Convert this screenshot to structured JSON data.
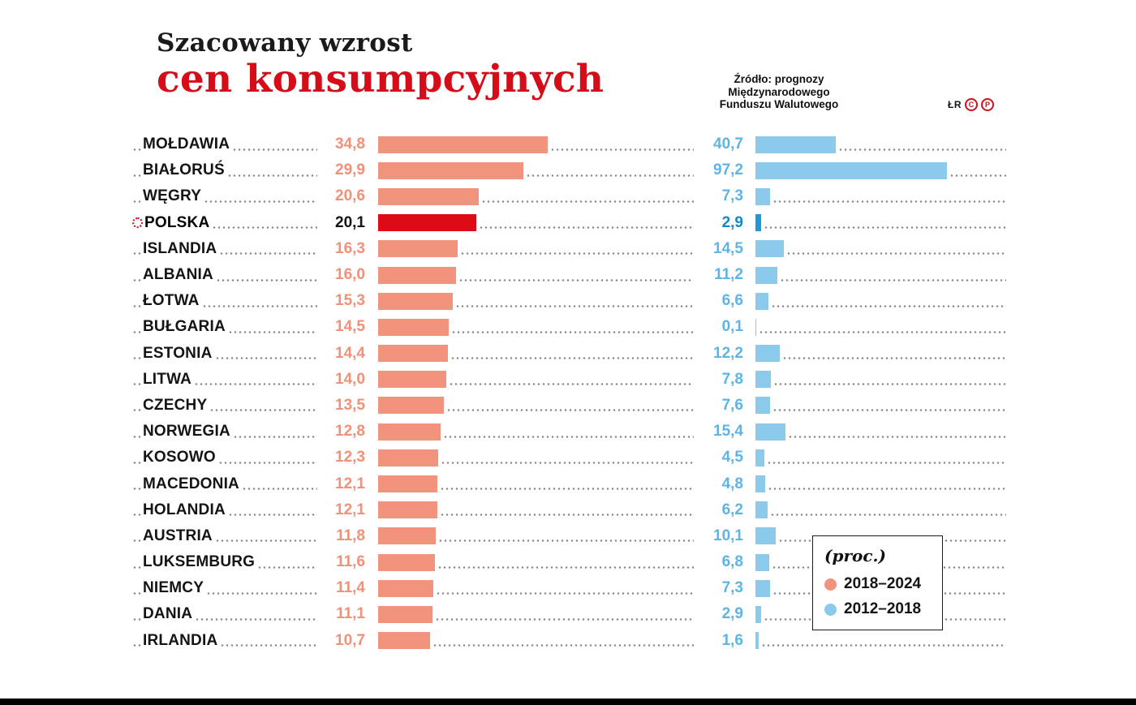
{
  "header": {
    "title_line1": "Szacowany wzrost",
    "title_line2": "cen konsumpcyjnych",
    "source": [
      "Źródło: prognozy",
      "Międzynarodowego",
      "Funduszu Walutowego"
    ],
    "credit": "ŁR",
    "badges": [
      "C",
      "P"
    ]
  },
  "legend": {
    "title": "(proc.)",
    "items": [
      {
        "label": "2018–2024",
        "color": "#F2947D"
      },
      {
        "label": "2012–2018",
        "color": "#8CCAEC"
      }
    ]
  },
  "colors": {
    "series1_bar": "#F2947D",
    "series1_value": "#F0917A",
    "series2_bar": "#8CCAEC",
    "series2_value": "#5FB4E4",
    "highlight_bar1": "#DD0B16",
    "highlight_bar2": "#1E9AD6",
    "accent_red": "#D40D19"
  },
  "chart_data": {
    "type": "bar",
    "title": "Szacowany wzrost cen konsumpcyjnych",
    "unit": "proc.",
    "orientation": "horizontal",
    "legend_position": "bottom-right",
    "highlight_category": "POLSKA",
    "categories": [
      "MOŁDAWIA",
      "BIAŁORUŚ",
      "WĘGRY",
      "POLSKA",
      "ISLANDIA",
      "ALBANIA",
      "ŁOTWA",
      "BUŁGARIA",
      "ESTONIA",
      "LITWA",
      "CZECHY",
      "NORWEGIA",
      "KOSOWO",
      "MACEDONIA",
      "HOLANDIA",
      "AUSTRIA",
      "LUKSEMBURG",
      "NIEMCY",
      "DANIA",
      "IRLANDIA"
    ],
    "series": [
      {
        "name": "2018–2024",
        "values": [
          34.8,
          29.9,
          20.6,
          20.1,
          16.3,
          16.0,
          15.3,
          14.5,
          14.4,
          14.0,
          13.5,
          12.8,
          12.3,
          12.1,
          12.1,
          11.8,
          11.6,
          11.4,
          11.1,
          10.7
        ],
        "labels": [
          "34,8",
          "29,9",
          "20,6",
          "20,1",
          "16,3",
          "16,0",
          "15,3",
          "14,5",
          "14,4",
          "14,0",
          "13,5",
          "12,8",
          "12,3",
          "12,1",
          "12,1",
          "11,8",
          "11,6",
          "11,4",
          "11,1",
          "10,7"
        ]
      },
      {
        "name": "2012–2018",
        "values": [
          40.7,
          97.2,
          7.3,
          2.9,
          14.5,
          11.2,
          6.6,
          0.1,
          12.2,
          7.8,
          7.6,
          15.4,
          4.5,
          4.8,
          6.2,
          10.1,
          6.8,
          7.3,
          2.9,
          1.6
        ],
        "labels": [
          "40,7",
          "97,2",
          "7,3",
          "2,9",
          "14,5",
          "11,2",
          "6,6",
          "0,1",
          "12,2",
          "7,8",
          "7,6",
          "15,4",
          "4,5",
          "4,8",
          "6,2",
          "10,1",
          "6,8",
          "7,3",
          "2,9",
          "1,6"
        ]
      }
    ]
  }
}
